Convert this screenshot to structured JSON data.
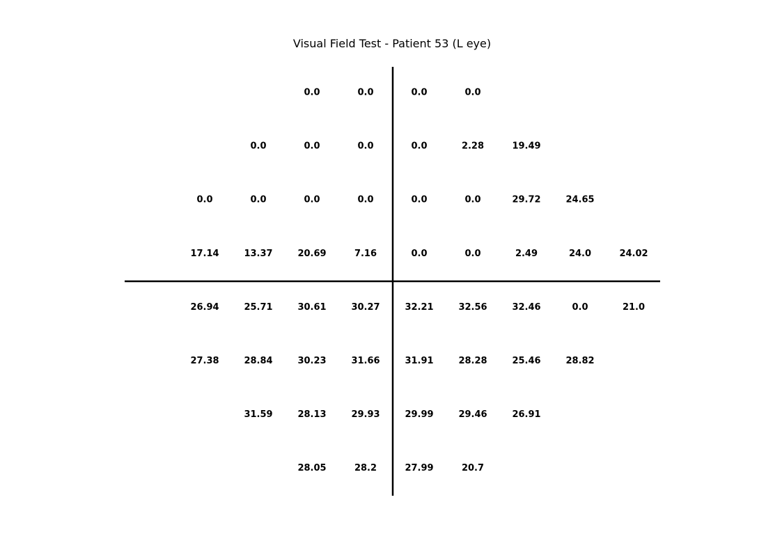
{
  "chart_data": {
    "type": "table",
    "title": "Visual Field Test - Patient 53 (L eye)",
    "xlabel": "",
    "ylabel": "",
    "grid": false,
    "legend": "none",
    "rows": [
      [
        null,
        null,
        "0.0",
        "0.0",
        "0.0",
        "0.0",
        null,
        null,
        null
      ],
      [
        null,
        "0.0",
        "0.0",
        "0.0",
        "0.0",
        "2.28",
        "19.49",
        null,
        null
      ],
      [
        "0.0",
        "0.0",
        "0.0",
        "0.0",
        "0.0",
        "0.0",
        "29.72",
        "24.65",
        null
      ],
      [
        "17.14",
        "13.37",
        "20.69",
        "7.16",
        "0.0",
        "0.0",
        "2.49",
        "24.0",
        "24.02"
      ],
      [
        "26.94",
        "25.71",
        "30.61",
        "30.27",
        "32.21",
        "32.56",
        "32.46",
        "0.0",
        "21.0"
      ],
      [
        "27.38",
        "28.84",
        "30.23",
        "31.66",
        "31.91",
        "28.28",
        "25.46",
        "28.82",
        null
      ],
      [
        null,
        "31.59",
        "28.13",
        "29.93",
        "29.99",
        "29.46",
        "26.91",
        null,
        null
      ],
      [
        null,
        null,
        "28.05",
        "28.2",
        "27.99",
        "20.7",
        null,
        null,
        null
      ]
    ]
  }
}
